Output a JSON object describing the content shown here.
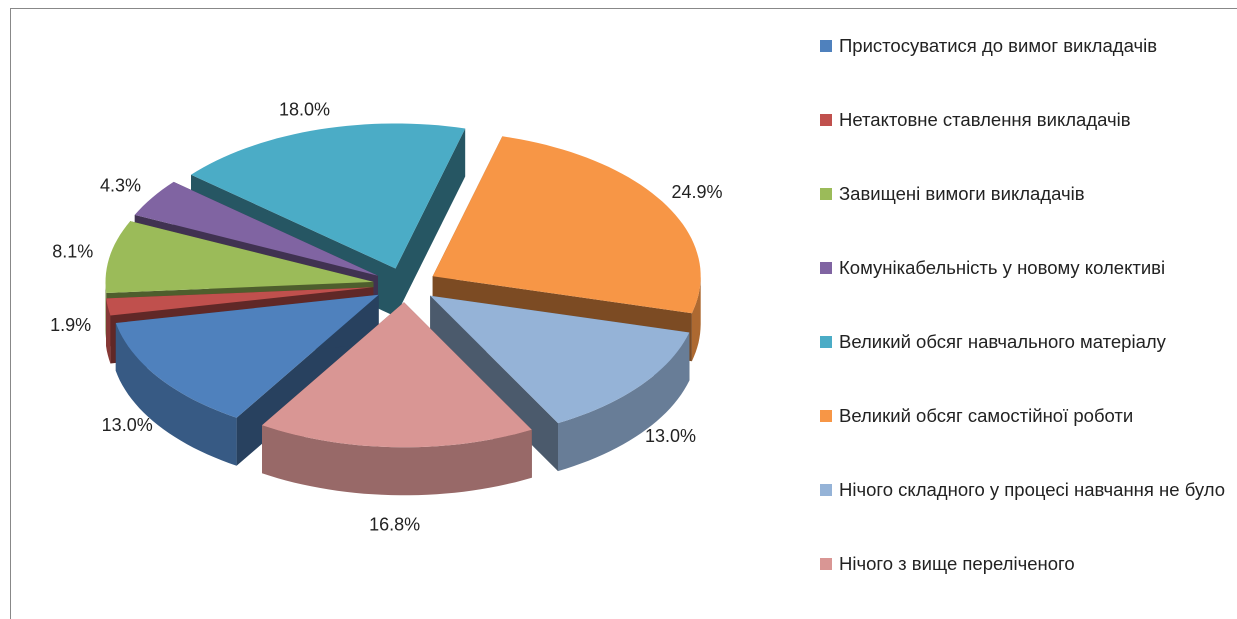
{
  "chart_data": {
    "type": "pie",
    "categories": [
      "Пристосуватися до вимог викладачів",
      "Нетактовне ставлення викладачів",
      "Завищені вимоги викладачів",
      "Комунікабельність у новому колективі",
      "Великий обсяг навчального матеріалу",
      "Великий обсяг самостійної роботи",
      "Нічого складного у процесі навчання не було",
      "Нічого з вище переліченого"
    ],
    "values": [
      13.0,
      1.9,
      8.1,
      4.3,
      18.0,
      24.9,
      13.0,
      16.8
    ],
    "value_labels": [
      "13.0%",
      "1.9%",
      "8.1%",
      "4.3%",
      "18.0%",
      "24.9%",
      "13.0%",
      "16.8%"
    ],
    "colors": [
      "#4f81bd",
      "#c0504d",
      "#9bbb59",
      "#8064a2",
      "#4bacc6",
      "#f79646",
      "#95b3d7",
      "#d99694"
    ],
    "legend": "right"
  }
}
